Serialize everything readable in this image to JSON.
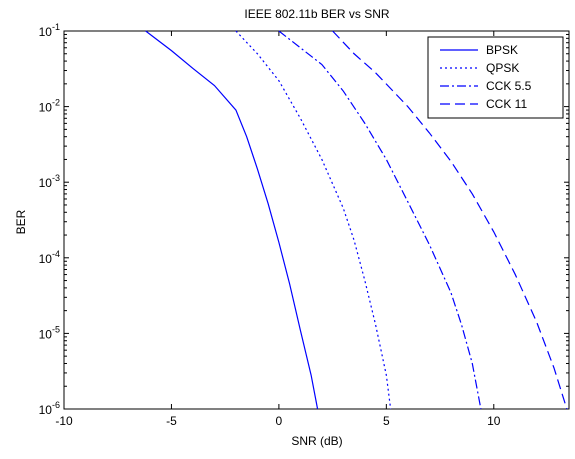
{
  "chart_data": {
    "type": "line",
    "title": "IEEE 802.11b BER vs SNR",
    "xlabel": "SNR (dB)",
    "ylabel": "BER",
    "xlim": [
      -10,
      13.5
    ],
    "ylim_log10": [
      -6,
      -1
    ],
    "y_scale": "log",
    "x_ticks": [
      "-10",
      "-5",
      "0",
      "5",
      "10"
    ],
    "y_ticks": [
      {
        "base": "10",
        "exp": "-1"
      },
      {
        "base": "10",
        "exp": "-2"
      },
      {
        "base": "10",
        "exp": "-3"
      },
      {
        "base": "10",
        "exp": "-4"
      },
      {
        "base": "10",
        "exp": "-5"
      },
      {
        "base": "10",
        "exp": "-6"
      }
    ],
    "grid": false,
    "legend_position": "top-right",
    "line_color": "#0000ff",
    "series": [
      {
        "name": "BPSK",
        "dash": "solid",
        "x": [
          -6.2,
          -5,
          -4,
          -3,
          -2,
          -1.5,
          -1,
          -0.5,
          0,
          0.5,
          1,
          1.5,
          1.8
        ],
        "y": [
          0.1,
          0.055,
          0.032,
          0.019,
          0.009,
          0.004,
          0.0015,
          0.00052,
          0.00016,
          4.5e-05,
          1.1e-05,
          2.8e-06,
          1e-06
        ]
      },
      {
        "name": "QPSK",
        "dash": "dotted",
        "x": [
          -2,
          -1,
          0,
          1,
          2,
          3,
          3.5,
          4,
          4.5,
          5,
          5.2
        ],
        "y": [
          0.1,
          0.05,
          0.022,
          0.007,
          0.002,
          0.00045,
          0.00017,
          5e-05,
          1.3e-05,
          2.8e-06,
          1e-06
        ]
      },
      {
        "name": "CCK 5.5",
        "dash": "dashdot",
        "x": [
          0,
          1,
          2,
          3,
          4,
          5,
          6,
          7,
          8,
          8.5,
          9,
          9.4
        ],
        "y": [
          0.1,
          0.06,
          0.036,
          0.016,
          0.006,
          0.002,
          0.00055,
          0.00015,
          3.5e-05,
          1.3e-05,
          4e-06,
          1e-06
        ]
      },
      {
        "name": "CCK 11",
        "dash": "dashed",
        "x": [
          2.5,
          3.5,
          4.5,
          6,
          7,
          8,
          9,
          10,
          11,
          12,
          12.8,
          13.4
        ],
        "y": [
          0.1,
          0.05,
          0.028,
          0.01,
          0.0045,
          0.0019,
          0.0007,
          0.00022,
          6e-05,
          1.4e-05,
          3.5e-06,
          1e-06
        ]
      }
    ]
  }
}
